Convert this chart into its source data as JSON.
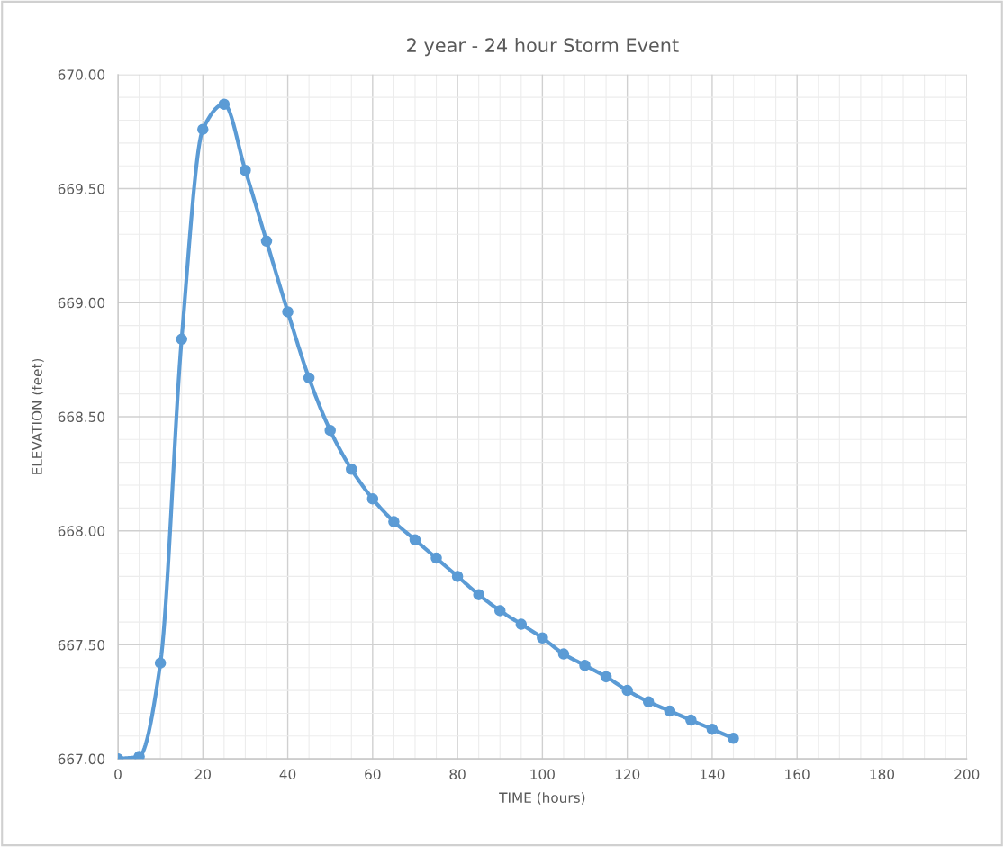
{
  "chart_data": {
    "type": "line",
    "title": "2 year - 24 hour Storm Event",
    "xlabel": "TIME (hours)",
    "ylabel": "ELEVATION (feet)",
    "x": [
      0,
      5,
      10,
      15,
      20,
      25,
      30,
      35,
      40,
      45,
      50,
      55,
      60,
      65,
      70,
      75,
      80,
      85,
      90,
      95,
      100,
      105,
      110,
      115,
      120,
      125,
      130,
      135,
      140,
      145
    ],
    "series": [
      {
        "color": "#5b9bd5",
        "values": [
          667.0,
          667.01,
          667.42,
          668.84,
          669.76,
          669.87,
          669.58,
          669.27,
          668.96,
          668.67,
          668.44,
          668.27,
          668.14,
          668.04,
          667.96,
          667.88,
          667.8,
          667.72,
          667.65,
          667.59,
          667.53,
          667.46,
          667.41,
          667.36,
          667.3,
          667.25,
          667.21,
          667.17,
          667.13,
          667.09
        ]
      }
    ],
    "xlim": [
      0,
      200
    ],
    "xticks": [
      0,
      20,
      40,
      60,
      80,
      100,
      120,
      140,
      160,
      180,
      200
    ],
    "ylim": [
      667.0,
      670.0
    ],
    "yticks": [
      {
        "value": 667.0,
        "label": "667.00"
      },
      {
        "value": 667.5,
        "label": "667.50"
      },
      {
        "value": 668.0,
        "label": "668.00"
      },
      {
        "value": 668.5,
        "label": "668.50"
      },
      {
        "value": 669.0,
        "label": "669.00"
      },
      {
        "value": 669.5,
        "label": "669.50"
      },
      {
        "value": 670.0,
        "label": "670.00"
      }
    ],
    "grid": true,
    "marker": "circle",
    "line_style": "solid"
  }
}
